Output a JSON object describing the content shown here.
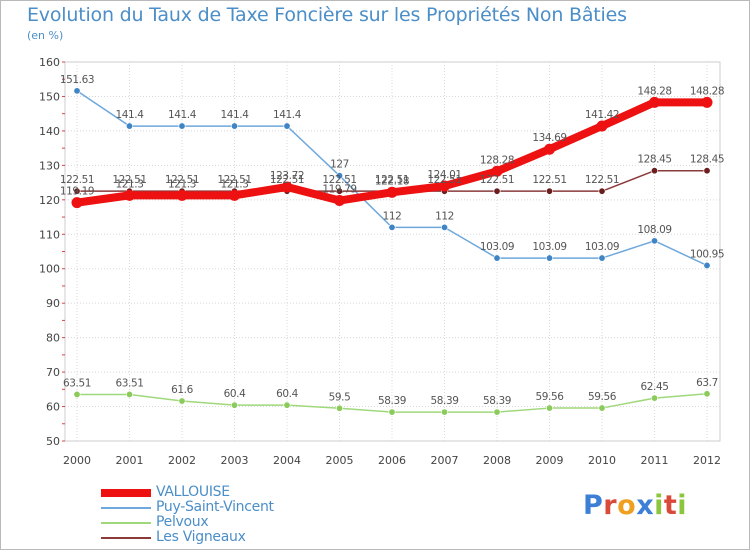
{
  "chart_data": {
    "type": "line",
    "title": "Evolution du Taux de Taxe Foncière sur les Propriétés Non Bâties",
    "subtitle": "(en %)",
    "categories": [
      "2000",
      "2001",
      "2002",
      "2003",
      "2004",
      "2005",
      "2006",
      "2007",
      "2008",
      "2009",
      "2010",
      "2011",
      "2012"
    ],
    "ylim": [
      50,
      160
    ],
    "yticks": [
      50,
      60,
      70,
      80,
      90,
      100,
      110,
      120,
      130,
      140,
      150,
      160
    ],
    "grid": true,
    "legend_position": "bottom-left",
    "series": [
      {
        "name": "Puy-Saint-Vincent",
        "color": "#6fa8dc",
        "marker": "#3f85c6",
        "values": [
          151.63,
          141.4,
          141.4,
          141.4,
          141.4,
          127,
          112,
          112,
          103.09,
          103.09,
          103.09,
          108.09,
          100.95
        ],
        "labels": [
          "151.63",
          "141.4",
          "141.4",
          "141.4",
          "141.4",
          "127",
          "112",
          "112",
          "103.09",
          "103.09",
          "103.09",
          "108.09",
          "100.95"
        ]
      },
      {
        "name": "Pelvoux",
        "color": "#9fd87a",
        "marker": "#8ccb5b",
        "values": [
          63.51,
          63.51,
          61.6,
          60.4,
          60.4,
          59.5,
          58.39,
          58.39,
          58.39,
          59.56,
          59.56,
          62.45,
          63.7
        ],
        "labels": [
          "63.51",
          "63.51",
          "61.6",
          "60.4",
          "60.4",
          "59.5",
          "58.39",
          "58.39",
          "58.39",
          "59.56",
          "59.56",
          "62.45",
          "63.7"
        ]
      },
      {
        "name": "Les Vigneaux",
        "color": "#8b3a3a",
        "marker": "#6b1e1e",
        "values": [
          122.51,
          122.51,
          122.51,
          122.51,
          122.51,
          122.51,
          122.51,
          122.51,
          122.51,
          122.51,
          122.51,
          128.45,
          128.45
        ],
        "labels": [
          "122.51",
          "122.51",
          "122.51",
          "122.51",
          "122.51",
          "122.51",
          "122.51",
          "122.51",
          "122.51",
          "122.51",
          "122.51",
          "128.45",
          "128.45"
        ]
      },
      {
        "name": "VALLOUISE",
        "color": "#ee1111",
        "marker": "#ee1111",
        "values": [
          119.19,
          121.3,
          121.3,
          121.3,
          123.72,
          119.79,
          122.18,
          124.01,
          128.28,
          134.69,
          141.42,
          148.28,
          148.28
        ],
        "labels": [
          "119.19",
          "121.3",
          "121.3",
          "121.3",
          "123.72",
          "119.79",
          "122.18",
          "124.01",
          "128.28",
          "134.69",
          "141.42",
          "148.28",
          "148.28"
        ]
      }
    ]
  },
  "legend": {
    "items": [
      {
        "label": "VALLOUISE",
        "color": "#ee1111"
      },
      {
        "label": "Puy-Saint-Vincent",
        "color": "#6fa8dc"
      },
      {
        "label": "Pelvoux",
        "color": "#9fd87a"
      },
      {
        "label": "Les Vigneaux",
        "color": "#8b3a3a"
      }
    ]
  },
  "logo": {
    "letters": [
      "P",
      "r",
      "o",
      "x",
      "i",
      "t",
      "i"
    ],
    "colors": [
      "#3d7fd6",
      "#d94a3a",
      "#f0a020",
      "#3d7fd6",
      "#8cc63f",
      "#d94a3a",
      "#8cc63f"
    ]
  }
}
